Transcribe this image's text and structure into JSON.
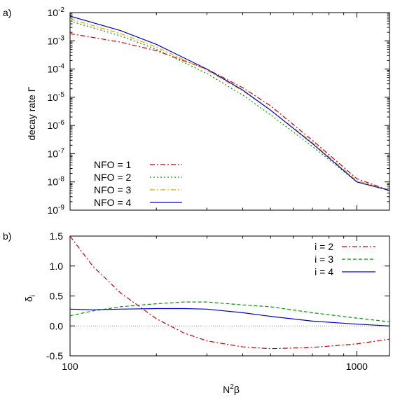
{
  "chart_data": [
    {
      "type": "line",
      "panel_label": "a)",
      "ylabel": "decay rate Γ",
      "y_scale": "log",
      "ylim": [
        1e-09,
        0.01
      ],
      "y_ticks": [
        {
          "base": "10",
          "exp": "-9"
        },
        {
          "base": "10",
          "exp": "-8"
        },
        {
          "base": "10",
          "exp": "-7"
        },
        {
          "base": "10",
          "exp": "-6"
        },
        {
          "base": "10",
          "exp": "-5"
        },
        {
          "base": "10",
          "exp": "-4"
        },
        {
          "base": "10",
          "exp": "-3"
        },
        {
          "base": "10",
          "exp": "-2"
        }
      ],
      "x_scale": "log",
      "xlim": [
        100,
        1300
      ],
      "legend_position": "bottom-left",
      "x": [
        100,
        150,
        200,
        300,
        400,
        500,
        700,
        1000,
        1300
      ],
      "series": [
        {
          "name": "NFO = 1",
          "color": "#cc0000",
          "dash": "dash-dot",
          "values": [
            0.0018,
            0.0009,
            0.00045,
            0.0001,
            2.2e-05,
            5e-06,
            3e-07,
            1.3e-08,
            5e-09
          ]
        },
        {
          "name": "NFO = 2",
          "color": "#009900",
          "dash": "dotted",
          "values": [
            0.005,
            0.0015,
            0.0005,
            7e-05,
            1.2e-05,
            2.4e-06,
            1.8e-07,
            1e-08,
            5e-09
          ]
        },
        {
          "name": "NFO = 3",
          "color": "#f0a000",
          "dash": "dash-dot",
          "values": [
            0.006,
            0.0018,
            0.0006,
            9e-05,
            1.7e-05,
            3.5e-06,
            2.5e-07,
            1.1e-08,
            5e-09
          ]
        },
        {
          "name": "NFO = 4",
          "color": "#0000cc",
          "dash": "solid",
          "values": [
            0.0075,
            0.0023,
            0.00075,
            0.0001,
            1.8e-05,
            3.5e-06,
            2.3e-07,
            1e-08,
            5e-09
          ]
        }
      ]
    },
    {
      "type": "line",
      "panel_label": "b)",
      "ylabel_base": "δ",
      "ylabel_sub": "i",
      "xlabel_base": "N",
      "xlabel_sup": "2",
      "xlabel_tail": "β",
      "y_scale": "linear",
      "ylim": [
        -0.5,
        1.5
      ],
      "y_ticks": [
        "-0.5",
        "0.0",
        "0.5",
        "1.0",
        "1.5"
      ],
      "x_scale": "log",
      "xlim": [
        100,
        1300
      ],
      "x_ticks": [
        "100",
        "1000"
      ],
      "reference_line": 0,
      "legend_position": "top-right",
      "x": [
        100,
        120,
        150,
        200,
        250,
        300,
        400,
        500,
        700,
        1000,
        1300
      ],
      "series": [
        {
          "name": "i = 2",
          "color": "#cc0000",
          "dash": "dash-dot",
          "values": [
            1.5,
            1.0,
            0.55,
            0.12,
            -0.12,
            -0.25,
            -0.35,
            -0.38,
            -0.36,
            -0.3,
            -0.22
          ]
        },
        {
          "name": "i = 3",
          "color": "#009900",
          "dash": "dashed",
          "values": [
            0.17,
            0.25,
            0.32,
            0.37,
            0.4,
            0.4,
            0.35,
            0.32,
            0.22,
            0.13,
            0.07
          ]
        },
        {
          "name": "i = 4",
          "color": "#0000cc",
          "dash": "solid",
          "values": [
            0.28,
            0.27,
            0.28,
            0.29,
            0.29,
            0.28,
            0.22,
            0.16,
            0.08,
            0.03,
            0.0
          ]
        }
      ]
    }
  ]
}
